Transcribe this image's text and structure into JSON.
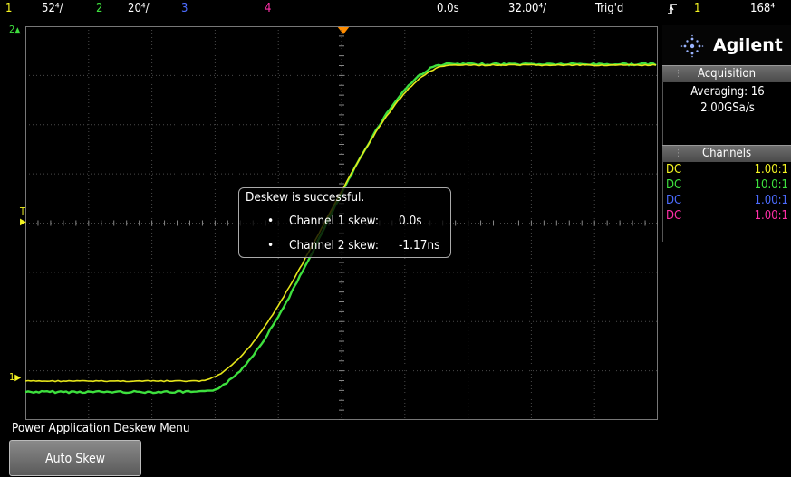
{
  "topbar": {
    "ch1_num": "1",
    "ch1_scale": "52⁴/",
    "ch2_num": "2",
    "ch2_scale": "20⁴/",
    "ch3_num": "3",
    "ch4_num": "4",
    "time_delay": "0.0s",
    "time_scale": "32.00⁴/",
    "trigger_status": "Trig'd",
    "trigger_slope_icon": "rising-edge-icon",
    "trigger_source": "1",
    "trigger_level": "168⁴"
  },
  "brand": {
    "name": "Agilent",
    "icon": "agilent-spark-icon"
  },
  "acquisition": {
    "header": "Acquisition",
    "mode": "Averaging: 16",
    "rate": "2.00GSa/s"
  },
  "channels": {
    "header": "Channels",
    "rows": [
      {
        "coupling": "DC",
        "scale": "1.00:1",
        "color": "#f4f422"
      },
      {
        "coupling": "DC",
        "scale": "10.0:1",
        "color": "#3ee03e"
      },
      {
        "coupling": "DC",
        "scale": "1.00:1",
        "color": "#4c6cff"
      },
      {
        "coupling": "DC",
        "scale": "1.00:1",
        "color": "#ff2fa8"
      }
    ]
  },
  "markers": {
    "ch2_ref": "2",
    "ch1_ref": "1",
    "trigger_level": "T"
  },
  "popup": {
    "title": "Deskew is successful.",
    "items": [
      {
        "label": "Channel 1 skew:",
        "value": "0.0s"
      },
      {
        "label": "Channel 2 skew:",
        "value": "-1.17ns"
      }
    ]
  },
  "menu": {
    "title": "Power Application Deskew Menu",
    "softkey1": "Auto Skew"
  },
  "colors": {
    "ch1": "#f4f422",
    "ch2": "#3ee03e",
    "ch3": "#4c6cff",
    "ch4": "#ff2fa8",
    "trigger_marker": "#ff8c00"
  }
}
